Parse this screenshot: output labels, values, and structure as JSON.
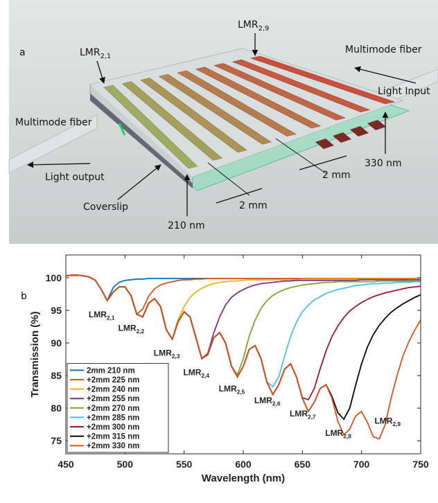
{
  "figure_a": {
    "panel_label": "a",
    "labels": [
      {
        "text": "LMR",
        "sub": "2,1"
      },
      {
        "text": "LMR",
        "sub": "2,9"
      },
      {
        "text": "Multimode fiber"
      },
      {
        "text": "Light Input"
      },
      {
        "text": "Multimode fiber"
      },
      {
        "text": "Light output"
      },
      {
        "text": "Coverslip"
      },
      {
        "text": "210 nm"
      },
      {
        "text": "330 nm"
      },
      {
        "text": "2 mm"
      },
      {
        "text": "2 mm"
      }
    ]
  },
  "chart_data": {
    "type": "line",
    "panel_label": "b",
    "x_label": "Wavelength (nm)",
    "y_label": "Transmission (%)",
    "xlim": [
      450,
      750
    ],
    "xticks": [
      450,
      500,
      550,
      600,
      650,
      700,
      750
    ],
    "ylim": [
      73,
      103.5
    ],
    "yticks": [
      75,
      80,
      85,
      90,
      95,
      100
    ],
    "grid": false,
    "legend": "lower left",
    "x": [
      450,
      455,
      460,
      465,
      470,
      475,
      480,
      485,
      490,
      495,
      500,
      505,
      510,
      515,
      520,
      525,
      530,
      535,
      540,
      545,
      550,
      555,
      560,
      565,
      570,
      575,
      580,
      585,
      590,
      595,
      600,
      605,
      610,
      615,
      620,
      625,
      630,
      635,
      640,
      645,
      650,
      655,
      660,
      665,
      670,
      675,
      680,
      685,
      690,
      695,
      700,
      705,
      710,
      715,
      720,
      725,
      730,
      735,
      740,
      745,
      750
    ],
    "series": [
      {
        "name": "2mm 210 nm",
        "color": "#0072BD",
        "values": [
          100.3,
          100.4,
          100.4,
          100.3,
          100.1,
          99.6,
          98.2,
          96.5,
          98.5,
          99.3,
          99.6,
          99.7,
          99.8,
          99.8,
          99.9,
          99.9,
          99.9,
          99.9,
          99.9,
          99.9,
          99.9,
          99.9,
          99.9,
          99.9,
          99.9,
          99.9,
          99.9,
          99.9,
          99.9,
          99.9,
          99.9,
          99.9,
          99.9,
          99.9,
          99.9,
          99.9,
          99.9,
          99.9,
          99.9,
          99.9,
          99.9,
          99.9,
          99.9,
          99.9,
          99.9,
          99.9,
          99.9,
          99.9,
          99.9,
          99.9,
          99.9,
          99.9,
          99.9,
          99.9,
          99.9,
          99.9,
          99.9,
          99.9,
          99.9,
          99.9,
          99.9
        ]
      },
      {
        "name": "+2mm 225 nm",
        "color": "#D95319",
        "values": [
          100.3,
          100.4,
          100.4,
          100.3,
          100.1,
          99.6,
          98.2,
          96.5,
          97.8,
          98.6,
          98.6,
          97.3,
          94.4,
          95.2,
          97.2,
          98.3,
          98.9,
          99.2,
          99.4,
          99.6,
          99.7,
          99.7,
          99.8,
          99.8,
          99.9,
          99.9,
          99.9,
          99.9,
          99.9,
          99.9,
          99.9,
          99.9,
          99.9,
          99.9,
          99.9,
          99.9,
          99.9,
          99.9,
          99.9,
          99.9,
          99.9,
          99.9,
          99.9,
          99.9,
          99.9,
          99.9,
          99.9,
          99.9,
          99.9,
          99.9,
          99.9,
          99.9,
          99.9,
          99.9,
          99.9,
          99.9,
          99.9,
          99.9,
          99.9,
          99.9,
          99.9
        ]
      },
      {
        "name": "+2mm 240 nm",
        "color": "#EDB120",
        "values": [
          100.3,
          100.4,
          100.4,
          100.3,
          100.1,
          99.6,
          98.2,
          96.5,
          97.8,
          98.6,
          98.6,
          97.3,
          94.4,
          94,
          96.1,
          96.8,
          95.6,
          92,
          90.6,
          93.6,
          95.6,
          97,
          97.8,
          98.4,
          98.8,
          99.1,
          99.3,
          99.4,
          99.5,
          99.5,
          99.6,
          99.7,
          99.7,
          99.7,
          99.7,
          99.7,
          99.7,
          99.7,
          99.7,
          99.7,
          99.8,
          99.8,
          99.8,
          99.8,
          99.8,
          99.8,
          99.8,
          99.8,
          99.8,
          99.8,
          99.8,
          99.8,
          99.8,
          99.8,
          99.8,
          99.8,
          99.8,
          99.8,
          99.8,
          99.8,
          99.8
        ]
      },
      {
        "name": "+2mm 255 nm",
        "color": "#7E2F8E",
        "values": [
          100.3,
          100.4,
          100.4,
          100.3,
          100.1,
          99.6,
          98.2,
          96.5,
          97.8,
          98.6,
          98.6,
          97.3,
          94.4,
          94,
          96.1,
          96.8,
          95.6,
          92,
          90.6,
          93.3,
          94.8,
          94,
          90.8,
          87.6,
          88.4,
          91.5,
          94,
          95.8,
          97,
          97.7,
          98.2,
          98.6,
          98.9,
          99.1,
          99.2,
          99.3,
          99.4,
          99.5,
          99.5,
          99.6,
          99.6,
          99.6,
          99.6,
          99.6,
          99.6,
          99.6,
          99.6,
          99.6,
          99.6,
          99.6,
          99.7,
          99.7,
          99.7,
          99.7,
          99.7,
          99.7,
          99.7,
          99.7,
          99.7,
          99.7,
          99.7
        ]
      },
      {
        "name": "+2mm 270 nm",
        "color": "#77AC30",
        "values": [
          100.3,
          100.4,
          100.4,
          100.3,
          100.1,
          99.6,
          98.2,
          96.5,
          97.8,
          98.6,
          98.6,
          97.3,
          94.4,
          94,
          96.1,
          96.8,
          95.6,
          92,
          90.6,
          93.3,
          94.8,
          94,
          90.8,
          87.6,
          88.2,
          90.8,
          91.6,
          90,
          86.5,
          85.1,
          87.6,
          91,
          93.5,
          95.3,
          96.5,
          97.3,
          97.8,
          98.2,
          98.5,
          98.7,
          98.9,
          99,
          99.1,
          99.2,
          99.3,
          99.3,
          99.4,
          99.4,
          99.4,
          99.4,
          99.4,
          99.4,
          99.4,
          99.5,
          99.5,
          99.5,
          99.5,
          99.5,
          99.5,
          99.5,
          99.5
        ]
      },
      {
        "name": "+2mm 285 nm",
        "color": "#4DBEEE",
        "values": [
          100.3,
          100.4,
          100.4,
          100.3,
          100.1,
          99.6,
          98.2,
          96.5,
          97.8,
          98.6,
          98.6,
          97.3,
          94.4,
          94,
          96.1,
          96.8,
          95.6,
          92,
          90.6,
          93.3,
          94.8,
          94,
          90.8,
          87.6,
          88.2,
          90.8,
          91.6,
          90,
          86.5,
          84.8,
          86.4,
          89,
          89.6,
          87.6,
          84,
          83.3,
          84.8,
          88,
          91,
          93.2,
          94.8,
          95.8,
          96.6,
          97.1,
          97.6,
          97.9,
          98.2,
          98.4,
          98.6,
          98.8,
          98.9,
          99,
          99.1,
          99.1,
          99.2,
          99.2,
          99.3,
          99.3,
          99.3,
          99.4,
          99.4
        ]
      },
      {
        "name": "+2mm 300 nm",
        "color": "#A2142F",
        "values": [
          100.3,
          100.4,
          100.4,
          100.3,
          100.1,
          99.6,
          98.2,
          96.5,
          97.8,
          98.6,
          98.6,
          97.3,
          94.4,
          94,
          96.1,
          96.8,
          95.6,
          92,
          90.6,
          93.3,
          94.8,
          94,
          90.8,
          87.6,
          88.2,
          90.8,
          91.6,
          90,
          86.5,
          84.8,
          86.4,
          89,
          89.6,
          87.6,
          84,
          82.1,
          83.6,
          86,
          86.8,
          84.8,
          81.6,
          81.3,
          83,
          86,
          88.8,
          91,
          92.6,
          93.9,
          94.9,
          95.6,
          96.2,
          96.7,
          97.1,
          97.4,
          97.7,
          97.9,
          98.1,
          98.3,
          98.5,
          98.6,
          98.7
        ]
      },
      {
        "name": "+2mm 315 nm",
        "color": "#000000",
        "values": [
          100.3,
          100.4,
          100.4,
          100.3,
          100.1,
          99.6,
          98.2,
          96.5,
          97.8,
          98.6,
          98.6,
          97.3,
          94.4,
          94,
          96.1,
          96.8,
          95.6,
          92,
          90.6,
          93.3,
          94.8,
          94,
          90.8,
          87.6,
          88.2,
          90.8,
          91.6,
          90,
          86.5,
          84.8,
          86.4,
          89,
          89.6,
          87.6,
          84,
          82.1,
          83.6,
          86,
          86.8,
          84.8,
          81.5,
          79.5,
          80.9,
          83,
          83.6,
          81.8,
          79.3,
          78.3,
          80,
          83.5,
          86.8,
          89.4,
          91.3,
          92.7,
          93.8,
          94.7,
          95.4,
          96,
          96.5,
          97,
          97.4
        ]
      },
      {
        "name": "+2mm 330 nm",
        "color": "#D95319",
        "values": [
          100.3,
          100.4,
          100.4,
          100.3,
          100.1,
          99.6,
          98.2,
          96.5,
          97.8,
          98.6,
          98.6,
          97.3,
          94.4,
          94,
          96.1,
          96.8,
          95.6,
          92,
          90.6,
          93.3,
          94.8,
          94,
          90.8,
          87.6,
          88.2,
          90.8,
          91.6,
          90,
          86.5,
          84.8,
          86.4,
          89,
          89.6,
          87.6,
          84,
          82.1,
          83.6,
          86,
          86.8,
          84.8,
          81.5,
          79.5,
          80.9,
          83,
          83.6,
          81.5,
          78,
          75.9,
          76.8,
          78.8,
          79.5,
          77.8,
          75.6,
          75.3,
          77.5,
          81.5,
          85,
          88,
          90.2,
          92,
          93.5
        ]
      }
    ],
    "annotations": [
      {
        "text": "LMR",
        "sub": "2,1"
      },
      {
        "text": "LMR",
        "sub": "2,2"
      },
      {
        "text": "LMR",
        "sub": "2,3"
      },
      {
        "text": "LMR",
        "sub": "2,4"
      },
      {
        "text": "LMR",
        "sub": "2,5"
      },
      {
        "text": "LMR",
        "sub": "2,6"
      },
      {
        "text": "LMR",
        "sub": "2,7"
      },
      {
        "text": "LMR",
        "sub": "2,8"
      },
      {
        "text": "LMR",
        "sub": "2,9"
      }
    ]
  }
}
